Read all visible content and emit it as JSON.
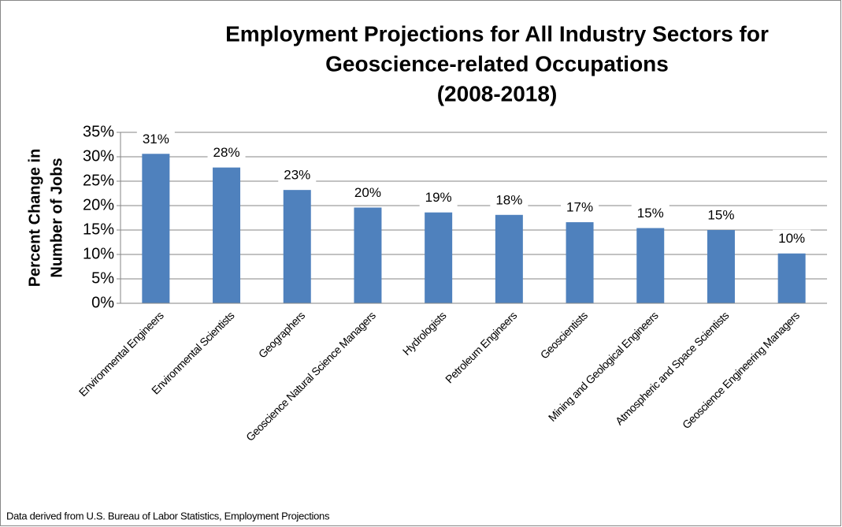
{
  "chart_data": {
    "type": "bar",
    "title": [
      "Employment Projections for All Industry Sectors for",
      "Geoscience-related Occupations",
      "(2008-2018)"
    ],
    "ylabel": [
      "Percent Change in",
      "Number of Jobs"
    ],
    "categories": [
      "Environmental Engineers",
      "Environmental Scientists",
      "Geographers",
      "Geoscience Natural Science Managers",
      "Hydrologists",
      "Petroleum Engineers",
      "Geoscientists",
      "Mining and Geological Engineers",
      "Atmospheric and Space Scientists",
      "Geoscience Engineering  Managers"
    ],
    "values": [
      30.6,
      27.8,
      23.2,
      19.6,
      18.6,
      18.1,
      16.6,
      15.4,
      15.0,
      10.2
    ],
    "value_labels": [
      "31%",
      "28%",
      "23%",
      "20%",
      "19%",
      "18%",
      "17%",
      "15%",
      "15%",
      "10%"
    ],
    "color": "#4f81bd",
    "ylim": [
      0,
      35
    ],
    "yticks": [
      {
        "value": 0,
        "label": "0%"
      },
      {
        "value": 5,
        "label": "5%"
      },
      {
        "value": 10,
        "label": "10%"
      },
      {
        "value": 15,
        "label": "15%"
      },
      {
        "value": 20,
        "label": "20%"
      },
      {
        "value": 25,
        "label": "25%"
      },
      {
        "value": 30,
        "label": "30%"
      },
      {
        "value": 35,
        "label": "35%"
      }
    ],
    "grid": true,
    "note": "Data derived from U.S. Bureau of Labor Statistics,  Employment Projections"
  }
}
